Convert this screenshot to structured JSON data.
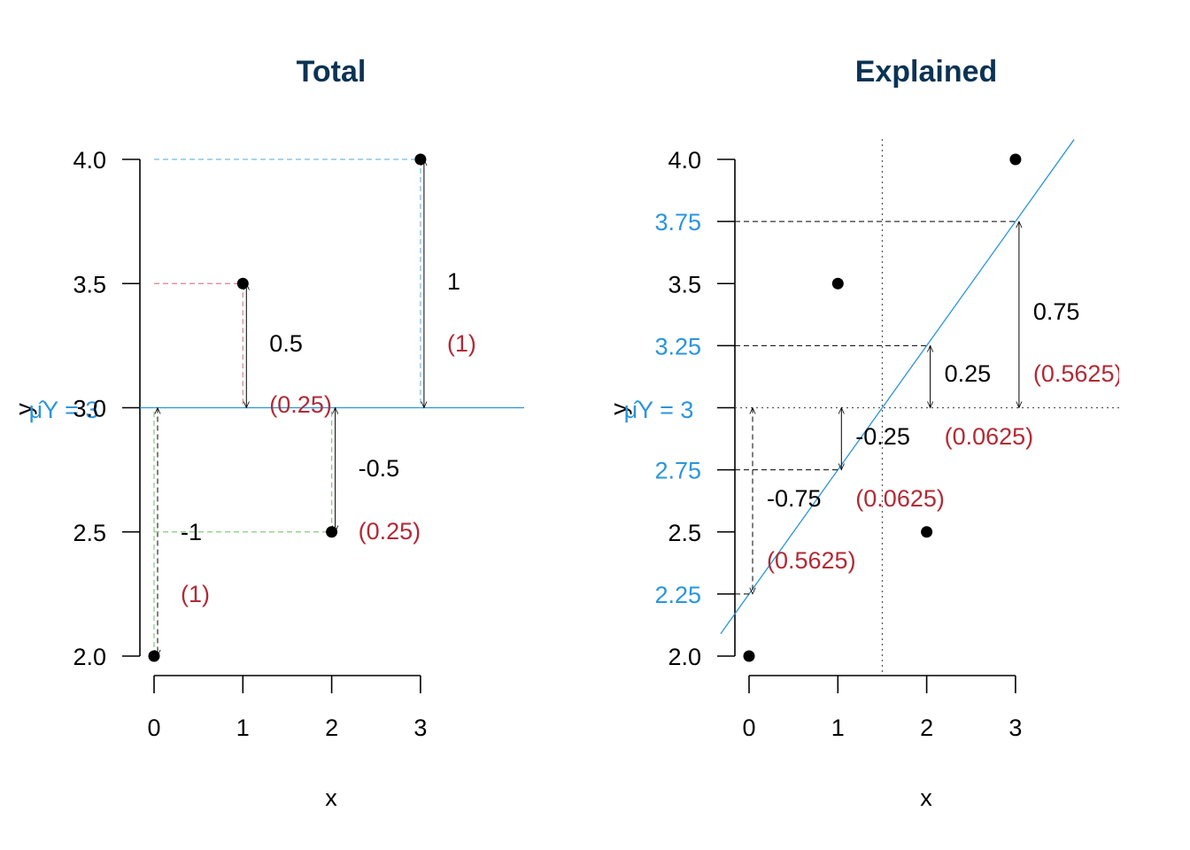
{
  "colors": {
    "title": "#0b3354",
    "blue": "#2b95db",
    "red": "#b22a35",
    "pink": "#d6848e",
    "green": "#86c97d",
    "lightblue": "#79b9d9",
    "black": "#000000",
    "gray": "#555555"
  },
  "chart_data": [
    {
      "type": "scatter",
      "title": "Total",
      "xlabel": "x",
      "ylabel": "y",
      "xlim": [
        0,
        3
      ],
      "ylim": [
        2.0,
        4.0
      ],
      "x_ticks": [
        "0",
        "1",
        "2",
        "3"
      ],
      "y_ticks": [
        "2.0",
        "2.5",
        "3.0",
        "3.5",
        "4.0"
      ],
      "points": [
        {
          "x": 0,
          "y": 2.0
        },
        {
          "x": 1,
          "y": 3.5
        },
        {
          "x": 2,
          "y": 2.5
        },
        {
          "x": 3,
          "y": 4.0
        }
      ],
      "mean_label": "μ̂Y = 3",
      "mean_value": 3,
      "deviations": [
        {
          "x": 0,
          "y": 2.0,
          "label": "-1",
          "squared": "(1)",
          "color": "#86c97d"
        },
        {
          "x": 1,
          "y": 3.5,
          "label": "0.5",
          "squared": "(0.25)",
          "color": "#d6848e"
        },
        {
          "x": 2,
          "y": 2.5,
          "label": "-0.5",
          "squared": "(0.25)",
          "color": "#86c97d"
        },
        {
          "x": 3,
          "y": 4.0,
          "label": "1",
          "squared": "(1)",
          "color": "#79b9d9"
        }
      ]
    },
    {
      "type": "scatter",
      "title": "Explained",
      "xlabel": "x",
      "ylabel": "y",
      "xlim": [
        0,
        3
      ],
      "ylim": [
        2.0,
        4.0
      ],
      "x_ticks": [
        "0",
        "1",
        "2",
        "3"
      ],
      "y_ticks": [
        "2.0",
        "2.5",
        "3.5",
        "4.0"
      ],
      "fitted_ticks": [
        "2.25",
        "2.75",
        "3.25",
        "3.75"
      ],
      "points": [
        {
          "x": 0,
          "y": 2.0
        },
        {
          "x": 1,
          "y": 3.5
        },
        {
          "x": 2,
          "y": 2.5
        },
        {
          "x": 3,
          "y": 4.0
        }
      ],
      "regression_line": {
        "intercept": 2.25,
        "slope": 0.5
      },
      "x_mean": 1.5,
      "mean_label": "μ̂Y = 3",
      "mean_value": 3,
      "fitted": [
        {
          "x": 0,
          "yhat": 2.25,
          "label": "-0.75",
          "squared": "(0.5625)"
        },
        {
          "x": 1,
          "yhat": 2.75,
          "label": "-0.25",
          "squared": "(0.0625)"
        },
        {
          "x": 2,
          "yhat": 3.25,
          "label": "0.25",
          "squared": "(0.0625)"
        },
        {
          "x": 3,
          "yhat": 3.75,
          "label": "0.75",
          "squared": "(0.5625)"
        }
      ]
    }
  ]
}
